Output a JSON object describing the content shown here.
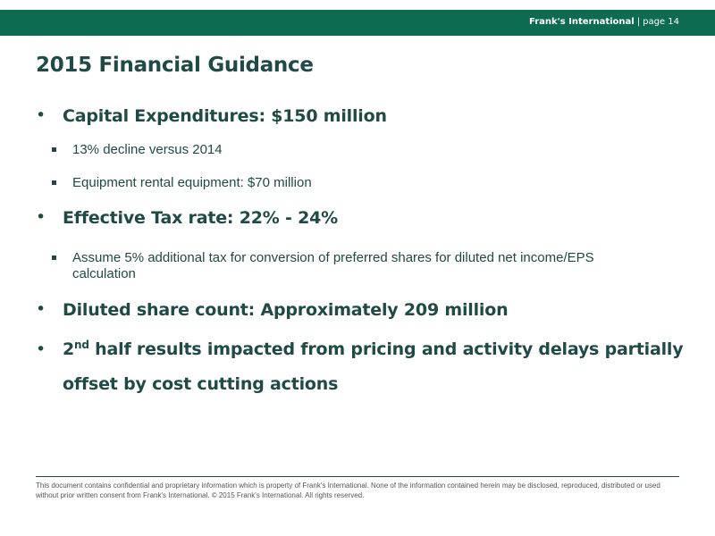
{
  "header": {
    "company": "Frank's International",
    "separator": "|",
    "page_label": "page 14"
  },
  "title": "2015 Financial Guidance",
  "bullets": {
    "capex": {
      "text": "Capital Expenditures: $150 million",
      "sub": [
        "13% decline versus 2014",
        "Equipment rental equipment: $70 million"
      ]
    },
    "tax": {
      "text": "Effective Tax rate: 22% - 24%",
      "sub": [
        "Assume 5% additional tax for conversion of preferred shares for diluted net income/EPS calculation"
      ]
    },
    "shares": {
      "text": "Diluted share count: Approximately 209 million"
    },
    "second_half": {
      "ordinal_number": "2",
      "ordinal_suffix": "nd",
      "text": " half results impacted from pricing and activity delays partially offset by cost cutting actions"
    }
  },
  "footer": "This document contains confidential and proprietary information which is property of Frank's International. None of the information contained herein may be disclosed, reproduced, distributed or used without prior written consent from Frank's International. © 2015 Frank's International. All rights reserved.",
  "colors": {
    "header_bar": "#0d6b52",
    "text": "#1f4a45"
  }
}
